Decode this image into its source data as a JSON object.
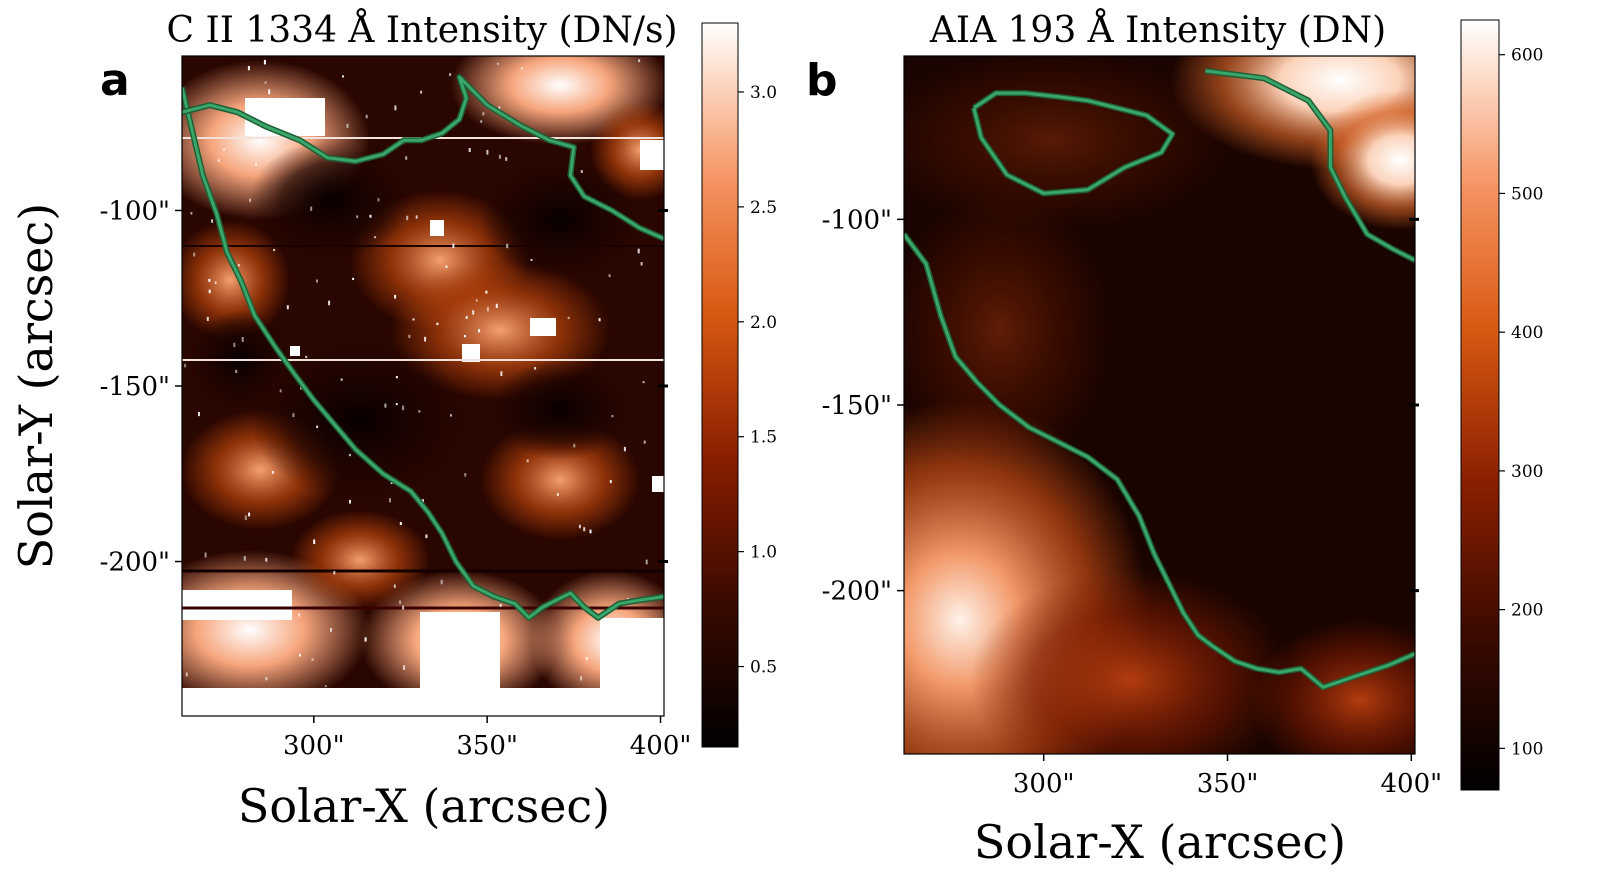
{
  "figure": {
    "ylabel": "Solar-Y (arcsec)",
    "panel_a_label": "a",
    "panel_b_label": "b"
  },
  "chart_data": [
    {
      "type": "heatmap",
      "panel": "a",
      "title": "C II 1334 Å Intensity (DN/s)",
      "xlabel": "Solar-X (arcsec)",
      "ylabel": "Solar-Y (arcsec)",
      "xlim": [
        262,
        401
      ],
      "ylim": [
        -244,
        -56
      ],
      "xticks": [
        300,
        350,
        400
      ],
      "xtick_labels": [
        "300\"",
        "350\"",
        "400\""
      ],
      "yticks": [
        -100,
        -150,
        -200
      ],
      "ytick_labels": [
        "-100\"",
        "-150\"",
        "-200\""
      ],
      "colormap": "gist_heat-like (black → dark red → orange → white)",
      "colorbar": {
        "range": [
          0.15,
          3.3
        ],
        "ticks": [
          0.5,
          1.0,
          1.5,
          2.0,
          2.5,
          3.0
        ],
        "tick_labels": [
          "0.5",
          "1.0",
          "1.5",
          "2.0",
          "2.5",
          "3.0"
        ]
      },
      "contour_color": "#3aa66a",
      "contour_path": [
        [
          262,
          -65
        ],
        [
          268,
          -90
        ],
        [
          272,
          -101
        ],
        [
          275,
          -112
        ],
        [
          279,
          -120
        ],
        [
          283,
          -130
        ],
        [
          289,
          -139
        ],
        [
          294,
          -146
        ],
        [
          300,
          -154
        ],
        [
          306,
          -161
        ],
        [
          312,
          -168
        ],
        [
          320,
          -175
        ],
        [
          328,
          -180
        ],
        [
          333,
          -186
        ],
        [
          337,
          -192
        ],
        [
          341,
          -200
        ],
        [
          346,
          -207
        ],
        [
          352,
          -210
        ],
        [
          358,
          -212
        ],
        [
          362,
          -216
        ],
        [
          366,
          -213
        ],
        [
          370,
          -211
        ],
        [
          374,
          -209
        ],
        [
          378,
          -213
        ],
        [
          382,
          -216
        ],
        [
          388,
          -212
        ],
        [
          394,
          -211
        ],
        [
          401,
          -210
        ]
      ],
      "contour_loop": [
        [
          262,
          -72
        ],
        [
          270,
          -70
        ],
        [
          278,
          -72
        ],
        [
          286,
          -76
        ],
        [
          296,
          -80
        ],
        [
          304,
          -85
        ],
        [
          312,
          -86
        ],
        [
          320,
          -84
        ],
        [
          326,
          -80
        ],
        [
          331,
          -80
        ],
        [
          337,
          -78
        ],
        [
          342,
          -74
        ],
        [
          344,
          -68
        ],
        [
          342,
          -62
        ],
        [
          350,
          -70
        ],
        [
          360,
          -76
        ],
        [
          368,
          -80
        ],
        [
          375,
          -82
        ],
        [
          374,
          -90
        ],
        [
          378,
          -96
        ],
        [
          386,
          -100
        ],
        [
          394,
          -105
        ],
        [
          401,
          -108
        ]
      ]
    },
    {
      "type": "heatmap",
      "panel": "b",
      "title": "AIA 193 Å Intensity (DN)",
      "xlabel": "Solar-X (arcsec)",
      "ylabel": "",
      "xlim": [
        262,
        401
      ],
      "ylim": [
        -244,
        -56
      ],
      "xticks": [
        300,
        350,
        400
      ],
      "xtick_labels": [
        "300\"",
        "350\"",
        "400\""
      ],
      "yticks": [
        -100,
        -150,
        -200
      ],
      "ytick_labels": [
        "-100\"",
        "-150\"",
        "-200\""
      ],
      "colormap": "gist_heat-like (black → dark red → orange → white)",
      "colorbar": {
        "range": [
          70,
          625
        ],
        "ticks": [
          100,
          200,
          300,
          400,
          500,
          600
        ],
        "tick_labels": [
          "100",
          "200",
          "300",
          "400",
          "500",
          "600"
        ]
      },
      "contour_color": "#3aa66a",
      "contour_path": [
        [
          262,
          -104
        ],
        [
          268,
          -112
        ],
        [
          272,
          -126
        ],
        [
          276,
          -137
        ],
        [
          282,
          -144
        ],
        [
          288,
          -150
        ],
        [
          296,
          -156
        ],
        [
          304,
          -160
        ],
        [
          312,
          -164
        ],
        [
          320,
          -170
        ],
        [
          326,
          -180
        ],
        [
          330,
          -190
        ],
        [
          334,
          -198
        ],
        [
          338,
          -206
        ],
        [
          342,
          -212
        ],
        [
          346,
          -215
        ],
        [
          352,
          -219
        ],
        [
          358,
          -221
        ],
        [
          364,
          -222
        ],
        [
          370,
          -221
        ],
        [
          376,
          -226
        ],
        [
          382,
          -224
        ],
        [
          388,
          -222
        ],
        [
          394,
          -220
        ],
        [
          401,
          -217
        ]
      ],
      "contour_loop": [
        [
          281,
          -70
        ],
        [
          283,
          -78
        ],
        [
          290,
          -88
        ],
        [
          300,
          -93
        ],
        [
          312,
          -92
        ],
        [
          322,
          -86
        ],
        [
          332,
          -82
        ],
        [
          335,
          -77
        ],
        [
          328,
          -72
        ],
        [
          320,
          -70
        ],
        [
          312,
          -68
        ],
        [
          304,
          -67
        ],
        [
          295,
          -66
        ],
        [
          287,
          -66
        ],
        [
          281,
          -70
        ]
      ],
      "contour_loop2": [
        [
          344,
          -60
        ],
        [
          360,
          -62
        ],
        [
          372,
          -68
        ],
        [
          378,
          -76
        ],
        [
          378,
          -86
        ],
        [
          382,
          -94
        ],
        [
          388,
          -104
        ],
        [
          395,
          -108
        ],
        [
          401,
          -111
        ]
      ]
    }
  ]
}
